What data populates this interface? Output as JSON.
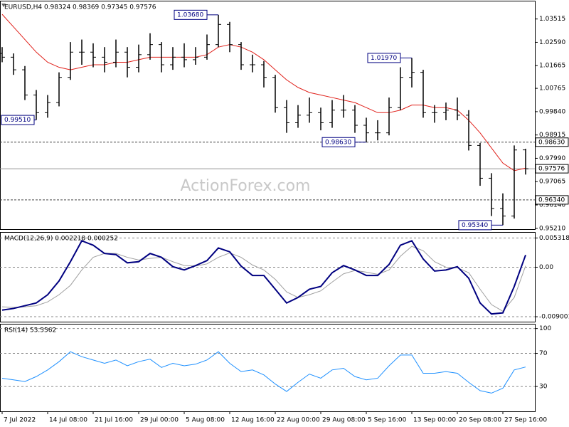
{
  "chart_data": [
    {
      "type": "ohlc",
      "title": "EURUSD,H4  0.98324 0.98369 0.97345 0.97576",
      "watermark": "ActionForex.com",
      "ohlc": [
        [
          1.0215,
          1.024,
          1.018,
          1.02
        ],
        [
          1.02,
          1.0215,
          1.013,
          1.015
        ],
        [
          1.015,
          1.0165,
          1.003,
          1.005
        ],
        [
          1.005,
          1.007,
          0.9951,
          0.998
        ],
        [
          0.998,
          1.005,
          0.996,
          1.002
        ],
        [
          1.002,
          1.014,
          1.0005,
          1.012
        ],
        [
          1.012,
          1.026,
          1.011,
          1.022
        ],
        [
          1.022,
          1.027,
          1.017,
          1.022
        ],
        [
          1.022,
          1.0255,
          1.016,
          1.02
        ],
        [
          1.02,
          1.024,
          1.014,
          1.018
        ],
        [
          1.018,
          1.027,
          1.016,
          1.022
        ],
        [
          1.022,
          1.024,
          1.012,
          1.016
        ],
        [
          1.016,
          1.025,
          1.014,
          1.021
        ],
        [
          1.021,
          1.0295,
          1.019,
          1.025
        ],
        [
          1.025,
          1.026,
          1.014,
          1.017
        ],
        [
          1.017,
          1.024,
          1.015,
          1.02
        ],
        [
          1.02,
          1.0255,
          1.016,
          1.019
        ],
        [
          1.019,
          1.024,
          1.017,
          1.02
        ],
        [
          1.02,
          1.029,
          1.019,
          1.025
        ],
        [
          1.025,
          1.0368,
          1.024,
          1.033
        ],
        [
          1.033,
          1.034,
          1.022,
          1.025
        ],
        [
          1.025,
          1.026,
          1.015,
          1.017
        ],
        [
          1.017,
          1.021,
          1.014,
          1.017
        ],
        [
          1.017,
          1.0185,
          1.008,
          1.012
        ],
        [
          1.012,
          1.013,
          0.998,
          1.0
        ],
        [
          1.0,
          1.003,
          0.99,
          0.994
        ],
        [
          0.994,
          1.001,
          0.992,
          0.997
        ],
        [
          0.997,
          1.004,
          0.994,
          0.998
        ],
        [
          0.998,
          1.0,
          0.991,
          0.994
        ],
        [
          0.994,
          1.003,
          0.992,
          0.999
        ],
        [
          0.999,
          1.005,
          0.996,
          0.999
        ],
        [
          0.999,
          1.001,
          0.99,
          0.993
        ],
        [
          0.993,
          0.996,
          0.9863,
          0.99
        ],
        [
          0.99,
          0.995,
          0.987,
          0.99
        ],
        [
          0.99,
          1.004,
          0.989,
          1.0
        ],
        [
          1.0,
          1.016,
          0.999,
          1.012
        ],
        [
          1.012,
          1.0197,
          1.008,
          1.014
        ],
        [
          1.014,
          1.015,
          0.996,
          0.998
        ],
        [
          0.998,
          1.001,
          0.994,
          0.998
        ],
        [
          0.998,
          1.002,
          0.995,
          0.999
        ],
        [
          0.999,
          1.004,
          0.995,
          0.997
        ],
        [
          0.997,
          0.999,
          0.983,
          0.985
        ],
        [
          0.985,
          0.986,
          0.969,
          0.972
        ],
        [
          0.972,
          0.974,
          0.957,
          0.96
        ],
        [
          0.96,
          0.966,
          0.9534,
          0.957
        ],
        [
          0.957,
          0.985,
          0.956,
          0.9832
        ],
        [
          0.98324,
          0.98369,
          0.97345,
          0.97576
        ]
      ],
      "bar_color": "#000000",
      "series": [
        {
          "color": "#e0201a",
          "values": [
            1.037,
            1.032,
            1.027,
            1.022,
            1.018,
            1.016,
            1.015,
            1.016,
            1.017,
            1.017,
            1.018,
            1.018,
            1.019,
            1.02,
            1.02,
            1.02,
            1.02,
            1.02,
            1.021,
            1.024,
            1.025,
            1.024,
            1.022,
            1.019,
            1.015,
            1.011,
            1.008,
            1.006,
            1.005,
            1.004,
            1.003,
            1.002,
            1.0,
            0.998,
            0.998,
            0.999,
            1.001,
            1.001,
            1.0,
            1.0,
            0.999,
            0.995,
            0.99,
            0.984,
            0.978,
            0.975,
            0.976
          ]
        }
      ],
      "ylim": [
        0.9518,
        1.0424
      ],
      "yticks": [
        {
          "value": 1.03515,
          "label": "1.03515"
        },
        {
          "value": 1.0259,
          "label": "1.02590"
        },
        {
          "value": 1.01665,
          "label": "1.01665"
        },
        {
          "value": 1.00765,
          "label": "1.00765"
        },
        {
          "value": 0.9984,
          "label": "0.99840"
        },
        {
          "value": 0.98915,
          "label": "0.98915"
        },
        {
          "value": 0.9799,
          "label": "0.97990"
        },
        {
          "value": 0.97065,
          "label": "0.97065"
        },
        {
          "value": 0.9614,
          "label": "0.96140"
        },
        {
          "value": 0.9521,
          "label": "0.95210"
        }
      ],
      "annotations": [
        {
          "value": 1.0368,
          "label": "1.03680",
          "index": 19
        },
        {
          "value": 1.0197,
          "label": "1.01970",
          "index": 36
        },
        {
          "value": 0.9951,
          "label": "0.99510",
          "index": 3
        },
        {
          "value": 0.9863,
          "label": "0.98630",
          "index": 32
        },
        {
          "value": 0.9534,
          "label": "0.95340",
          "index": 44
        }
      ],
      "levels": [
        {
          "value": 0.9863,
          "label": "0.98630"
        },
        {
          "value": 0.9634,
          "label": "0.96340"
        }
      ],
      "last_price": {
        "value": 0.97576,
        "label": "0.97576"
      }
    },
    {
      "type": "line",
      "title": "MACD(12,26,9) 0.002218 0.000252",
      "series": [
        {
          "color": "#000080",
          "values": [
            -0.0078,
            -0.0075,
            -0.007,
            -0.0065,
            -0.005,
            -0.0025,
            0.001,
            0.0048,
            0.004,
            0.0025,
            0.0023,
            0.0008,
            0.001,
            0.0025,
            0.0018,
            0.0001,
            -0.0005,
            0.0003,
            0.0012,
            0.0035,
            0.0028,
            0.0002,
            -0.0015,
            -0.0015,
            -0.004,
            -0.0065,
            -0.0055,
            -0.004,
            -0.0035,
            -0.001,
            0.0003,
            -0.0005,
            -0.0015,
            -0.0015,
            0.0005,
            0.004,
            0.0048,
            0.0015,
            -0.0007,
            -0.0005,
            0.0001,
            -0.002,
            -0.0065,
            -0.0085,
            -0.0083,
            -0.0035,
            0.002218
          ]
        },
        {
          "color": "#a0a0a0",
          "values": [
            -0.0072,
            -0.0073,
            -0.0072,
            -0.007,
            -0.0063,
            -0.005,
            -0.0033,
            -0.0005,
            0.0018,
            0.0025,
            0.0025,
            0.0018,
            0.0013,
            0.0016,
            0.0018,
            0.001,
            0.0003,
            0.0002,
            0.0006,
            0.0018,
            0.0026,
            0.0018,
            0.0004,
            -0.0005,
            -0.0022,
            -0.0045,
            -0.0055,
            -0.005,
            -0.0043,
            -0.0027,
            -0.0012,
            -0.0006,
            -0.0009,
            -0.0013,
            -0.0005,
            0.002,
            0.0038,
            0.003,
            0.001,
            0.0,
            -0.0001,
            -0.001,
            -0.004,
            -0.0068,
            -0.008,
            -0.0055,
            0.000252
          ]
        }
      ],
      "ylim": [
        -0.0099,
        0.0064
      ],
      "yticks": [
        0.005318,
        {
          "value": 0,
          "label": "0.00"
        },
        -0.009001
      ]
    },
    {
      "type": "line",
      "title": "RSI(14) 53.5562",
      "series": [
        {
          "color": "#1e90ff",
          "values": [
            40,
            38,
            36,
            42,
            50,
            60,
            72,
            66,
            62,
            58,
            62,
            55,
            60,
            63,
            53,
            58,
            55,
            57,
            62,
            72,
            58,
            48,
            50,
            44,
            33,
            24,
            35,
            45,
            40,
            50,
            52,
            42,
            38,
            40,
            55,
            68,
            68,
            46,
            46,
            48,
            46,
            35,
            25,
            22,
            28,
            50,
            53.5562
          ]
        }
      ],
      "ylim": [
        0,
        105.7
      ],
      "yticks": [
        100,
        70,
        30
      ],
      "xticks": [
        {
          "value": 0,
          "label": "7 Jul 2022"
        },
        {
          "value": 4,
          "label": "14 Jul 08:00"
        },
        {
          "value": 8,
          "label": "21 Jul 16:00"
        },
        {
          "value": 12,
          "label": "29 Jul 00:00"
        },
        {
          "value": 16,
          "label": "5 Aug 08:00"
        },
        {
          "value": 20,
          "label": "12 Aug 16:00"
        },
        {
          "value": 24,
          "label": "22 Aug 00:00"
        },
        {
          "value": 28,
          "label": "29 Aug 08:00"
        },
        {
          "value": 32,
          "label": "5 Sep 16:00"
        },
        {
          "value": 36,
          "label": "13 Sep 00:00"
        },
        {
          "value": 40,
          "label": "20 Sep 08:00"
        },
        {
          "value": 44,
          "label": "27 Sep 16:00"
        }
      ]
    }
  ]
}
